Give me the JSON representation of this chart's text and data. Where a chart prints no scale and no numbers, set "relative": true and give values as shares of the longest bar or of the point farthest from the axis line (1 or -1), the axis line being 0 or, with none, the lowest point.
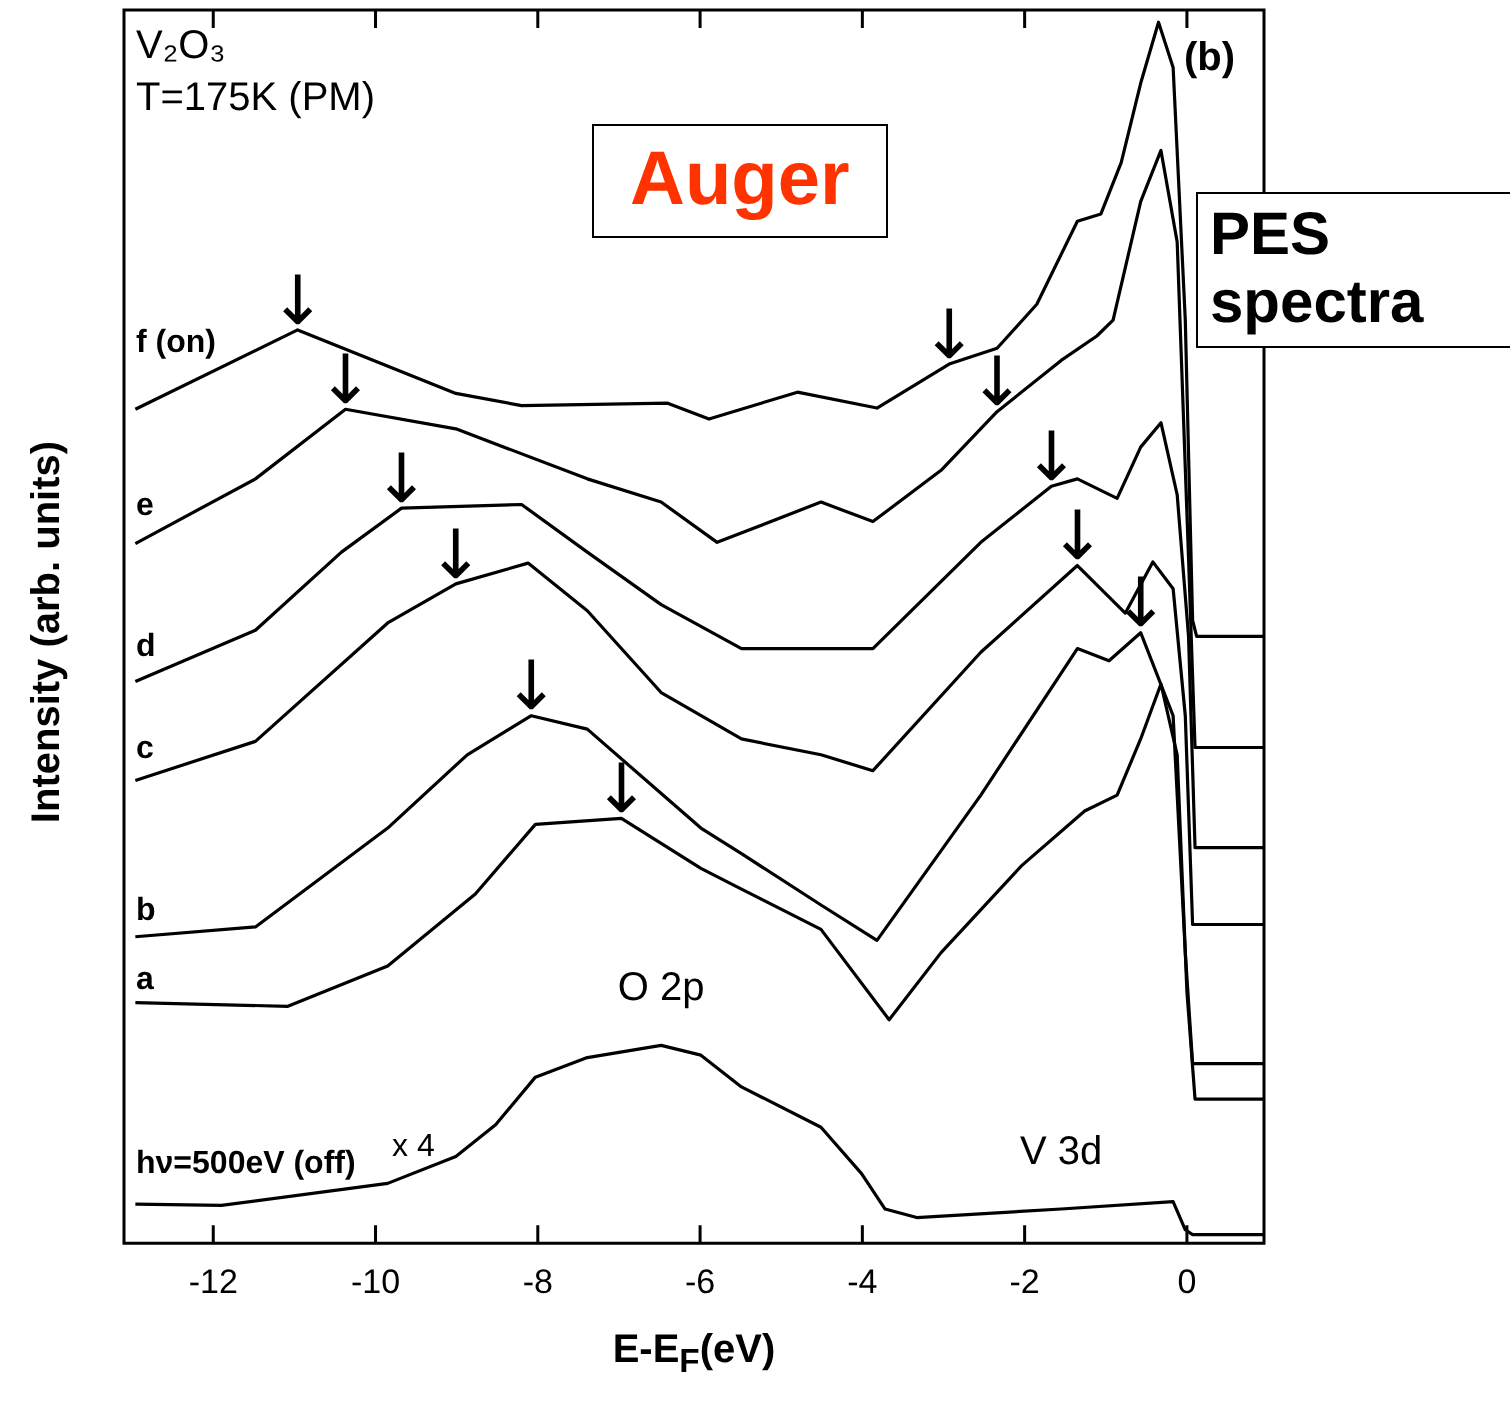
{
  "chart_data": {
    "type": "line",
    "relative": true,
    "xlabel": "E-E$_{F}$(eV)",
    "ylabel": "Intensity (arb. units)",
    "xlim": [
      -13.1,
      0.95
    ],
    "xticks": [
      -12,
      -10,
      -8,
      -6,
      -4,
      -2,
      0
    ],
    "tick_labels": "x",
    "series": [
      {
        "name": "f (on)",
        "color": "#000000",
        "x": [
          -12.96,
          -10.96,
          -9.01,
          -8.2,
          -6.4,
          -5.89,
          -4.8,
          -3.82,
          -2.93,
          -2.34,
          -1.85,
          -1.35,
          -1.06,
          -0.81,
          -0.57,
          -0.35,
          -0.17,
          -0.02,
          0.07,
          0.12,
          0.95
        ],
        "values": [
          0.683,
          0.748,
          0.696,
          0.686,
          0.688,
          0.675,
          0.697,
          0.684,
          0.72,
          0.733,
          0.769,
          0.837,
          0.843,
          0.885,
          0.95,
          1.0,
          0.963,
          0.756,
          0.51,
          0.497,
          0.497
        ]
      },
      {
        "name": "e",
        "color": "#000000",
        "x": [
          -12.96,
          -11.48,
          -10.37,
          -9.01,
          -7.39,
          -6.48,
          -5.79,
          -4.51,
          -3.87,
          -3.03,
          -2.34,
          -1.55,
          -1.11,
          -0.91,
          -0.57,
          -0.32,
          -0.12,
          0.02,
          0.1,
          0.95
        ],
        "values": [
          0.573,
          0.626,
          0.683,
          0.667,
          0.626,
          0.607,
          0.574,
          0.607,
          0.591,
          0.633,
          0.681,
          0.723,
          0.743,
          0.756,
          0.853,
          0.895,
          0.82,
          0.561,
          0.406,
          0.406
        ]
      },
      {
        "name": "d",
        "color": "#000000",
        "x": [
          -12.96,
          -11.48,
          -10.42,
          -9.68,
          -8.2,
          -7.39,
          -6.48,
          -5.49,
          -3.87,
          -2.54,
          -1.67,
          -1.35,
          -0.86,
          -0.57,
          -0.32,
          -0.12,
          0.02,
          0.1,
          0.95
        ],
        "values": [
          0.46,
          0.502,
          0.566,
          0.602,
          0.605,
          0.566,
          0.523,
          0.487,
          0.487,
          0.574,
          0.62,
          0.626,
          0.61,
          0.652,
          0.672,
          0.613,
          0.497,
          0.324,
          0.324
        ]
      },
      {
        "name": "c",
        "color": "#000000",
        "x": [
          -12.96,
          -11.48,
          -9.85,
          -9.01,
          -8.12,
          -7.39,
          -6.48,
          -5.49,
          -4.51,
          -3.87,
          -2.54,
          -1.35,
          -0.76,
          -0.42,
          -0.17,
          -0.02,
          0.07,
          0.95
        ],
        "values": [
          0.379,
          0.411,
          0.508,
          0.54,
          0.557,
          0.518,
          0.451,
          0.413,
          0.4,
          0.387,
          0.484,
          0.555,
          0.516,
          0.558,
          0.536,
          0.432,
          0.261,
          0.261
        ]
      },
      {
        "name": "b",
        "color": "#000000",
        "x": [
          -12.96,
          -11.48,
          -9.85,
          -8.87,
          -8.08,
          -7.39,
          -5.99,
          -5.49,
          -4.51,
          -3.82,
          -2.54,
          -1.35,
          -0.96,
          -0.57,
          -0.17,
          -0.02,
          0.07,
          0.95
        ],
        "values": [
          0.251,
          0.259,
          0.34,
          0.4,
          0.432,
          0.421,
          0.34,
          0.319,
          0.277,
          0.248,
          0.367,
          0.487,
          0.477,
          0.5,
          0.432,
          0.238,
          0.147,
          0.147
        ]
      },
      {
        "name": "a",
        "color": "#000000",
        "x": [
          -12.96,
          -11.08,
          -9.85,
          -8.77,
          -8.03,
          -6.97,
          -5.99,
          -5.49,
          -4.51,
          -3.67,
          -3.03,
          -2.04,
          -1.26,
          -0.86,
          -0.57,
          -0.32,
          -0.12,
          0,
          0.1,
          0.95
        ],
        "values": [
          0.197,
          0.194,
          0.227,
          0.286,
          0.343,
          0.348,
          0.307,
          0.29,
          0.257,
          0.183,
          0.238,
          0.309,
          0.354,
          0.367,
          0.413,
          0.458,
          0.4,
          0.206,
          0.118,
          0.118
        ]
      },
      {
        "name": "hν=500eV (off)",
        "color": "#000000",
        "x": [
          -12.96,
          -11.9,
          -9.85,
          -9.01,
          -8.52,
          -8.03,
          -7.39,
          -6.48,
          -5.99,
          -5.49,
          -4.51,
          -4.01,
          -3.72,
          -3.33,
          -1.55,
          -0.17,
          -0.02,
          0.07,
          0.95
        ],
        "values": [
          0.032,
          0.031,
          0.049,
          0.071,
          0.097,
          0.136,
          0.152,
          0.162,
          0.154,
          0.128,
          0.095,
          0.057,
          0.028,
          0.021,
          0.028,
          0.034,
          0.011,
          0.007,
          0.007
        ]
      }
    ],
    "annotations": [
      "V₂O₃",
      "T=175K (PM)",
      "Auger",
      "PES spectra",
      "(b)",
      "x 4",
      {
        "text": "O 2p",
        "x": -6.48,
        "y": 0.162
      },
      {
        "text": "V 3d",
        "x": -1.55,
        "y": 0.028
      },
      {
        "text": "↓",
        "x": -10.96,
        "y": 0.748
      },
      {
        "text": "↓",
        "x": -10.37,
        "y": 0.683
      },
      {
        "text": "↓",
        "x": -9.68,
        "y": 0.602
      },
      {
        "text": "↓",
        "x": -9.01,
        "y": 0.54
      },
      {
        "text": "↓",
        "x": -8.08,
        "y": 0.432
      },
      {
        "text": "↓",
        "x": -6.97,
        "y": 0.348
      },
      {
        "text": "↓",
        "x": -2.93,
        "y": 0.72
      },
      {
        "text": "↓",
        "x": -2.34,
        "y": 0.681
      },
      {
        "text": "↓",
        "x": -1.67,
        "y": 0.62
      },
      {
        "text": "↓",
        "x": -1.35,
        "y": 0.555
      },
      {
        "text": "↓",
        "x": -0.57,
        "y": 0.5
      }
    ]
  }
}
